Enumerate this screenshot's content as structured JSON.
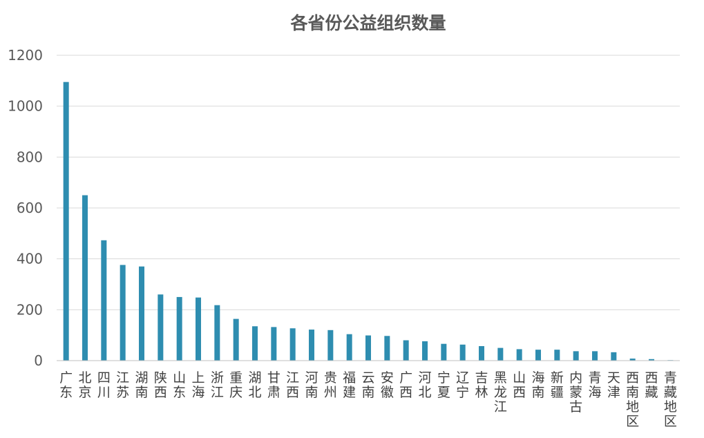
{
  "chart_data": {
    "type": "bar",
    "title": "各省份公益组织数量",
    "categories": [
      "广东",
      "北京",
      "四川",
      "江苏",
      "湖南",
      "陕西",
      "山东",
      "上海",
      "浙江",
      "重庆",
      "湖北",
      "甘肃",
      "江西",
      "河南",
      "贵州",
      "福建",
      "云南",
      "安徽",
      "广西",
      "河北",
      "宁夏",
      "辽宁",
      "吉林",
      "黑龙江",
      "山西",
      "海南",
      "新疆",
      "内蒙古",
      "青海",
      "天津",
      "西南地区",
      "西藏",
      "青藏地区"
    ],
    "values": [
      1095,
      650,
      473,
      376,
      370,
      260,
      250,
      248,
      218,
      164,
      135,
      132,
      127,
      122,
      120,
      104,
      99,
      97,
      80,
      76,
      66,
      63,
      57,
      50,
      45,
      43,
      43,
      37,
      37,
      33,
      8,
      6,
      2
    ],
    "yticks": [
      "0",
      "200",
      "400",
      "600",
      "800",
      "1000",
      "1200"
    ],
    "ylim": [
      0,
      1200
    ],
    "xlabel": "",
    "ylabel": "",
    "grid": true,
    "bar_color": "#2e8db0",
    "grid_color": "#d9d9d9"
  }
}
